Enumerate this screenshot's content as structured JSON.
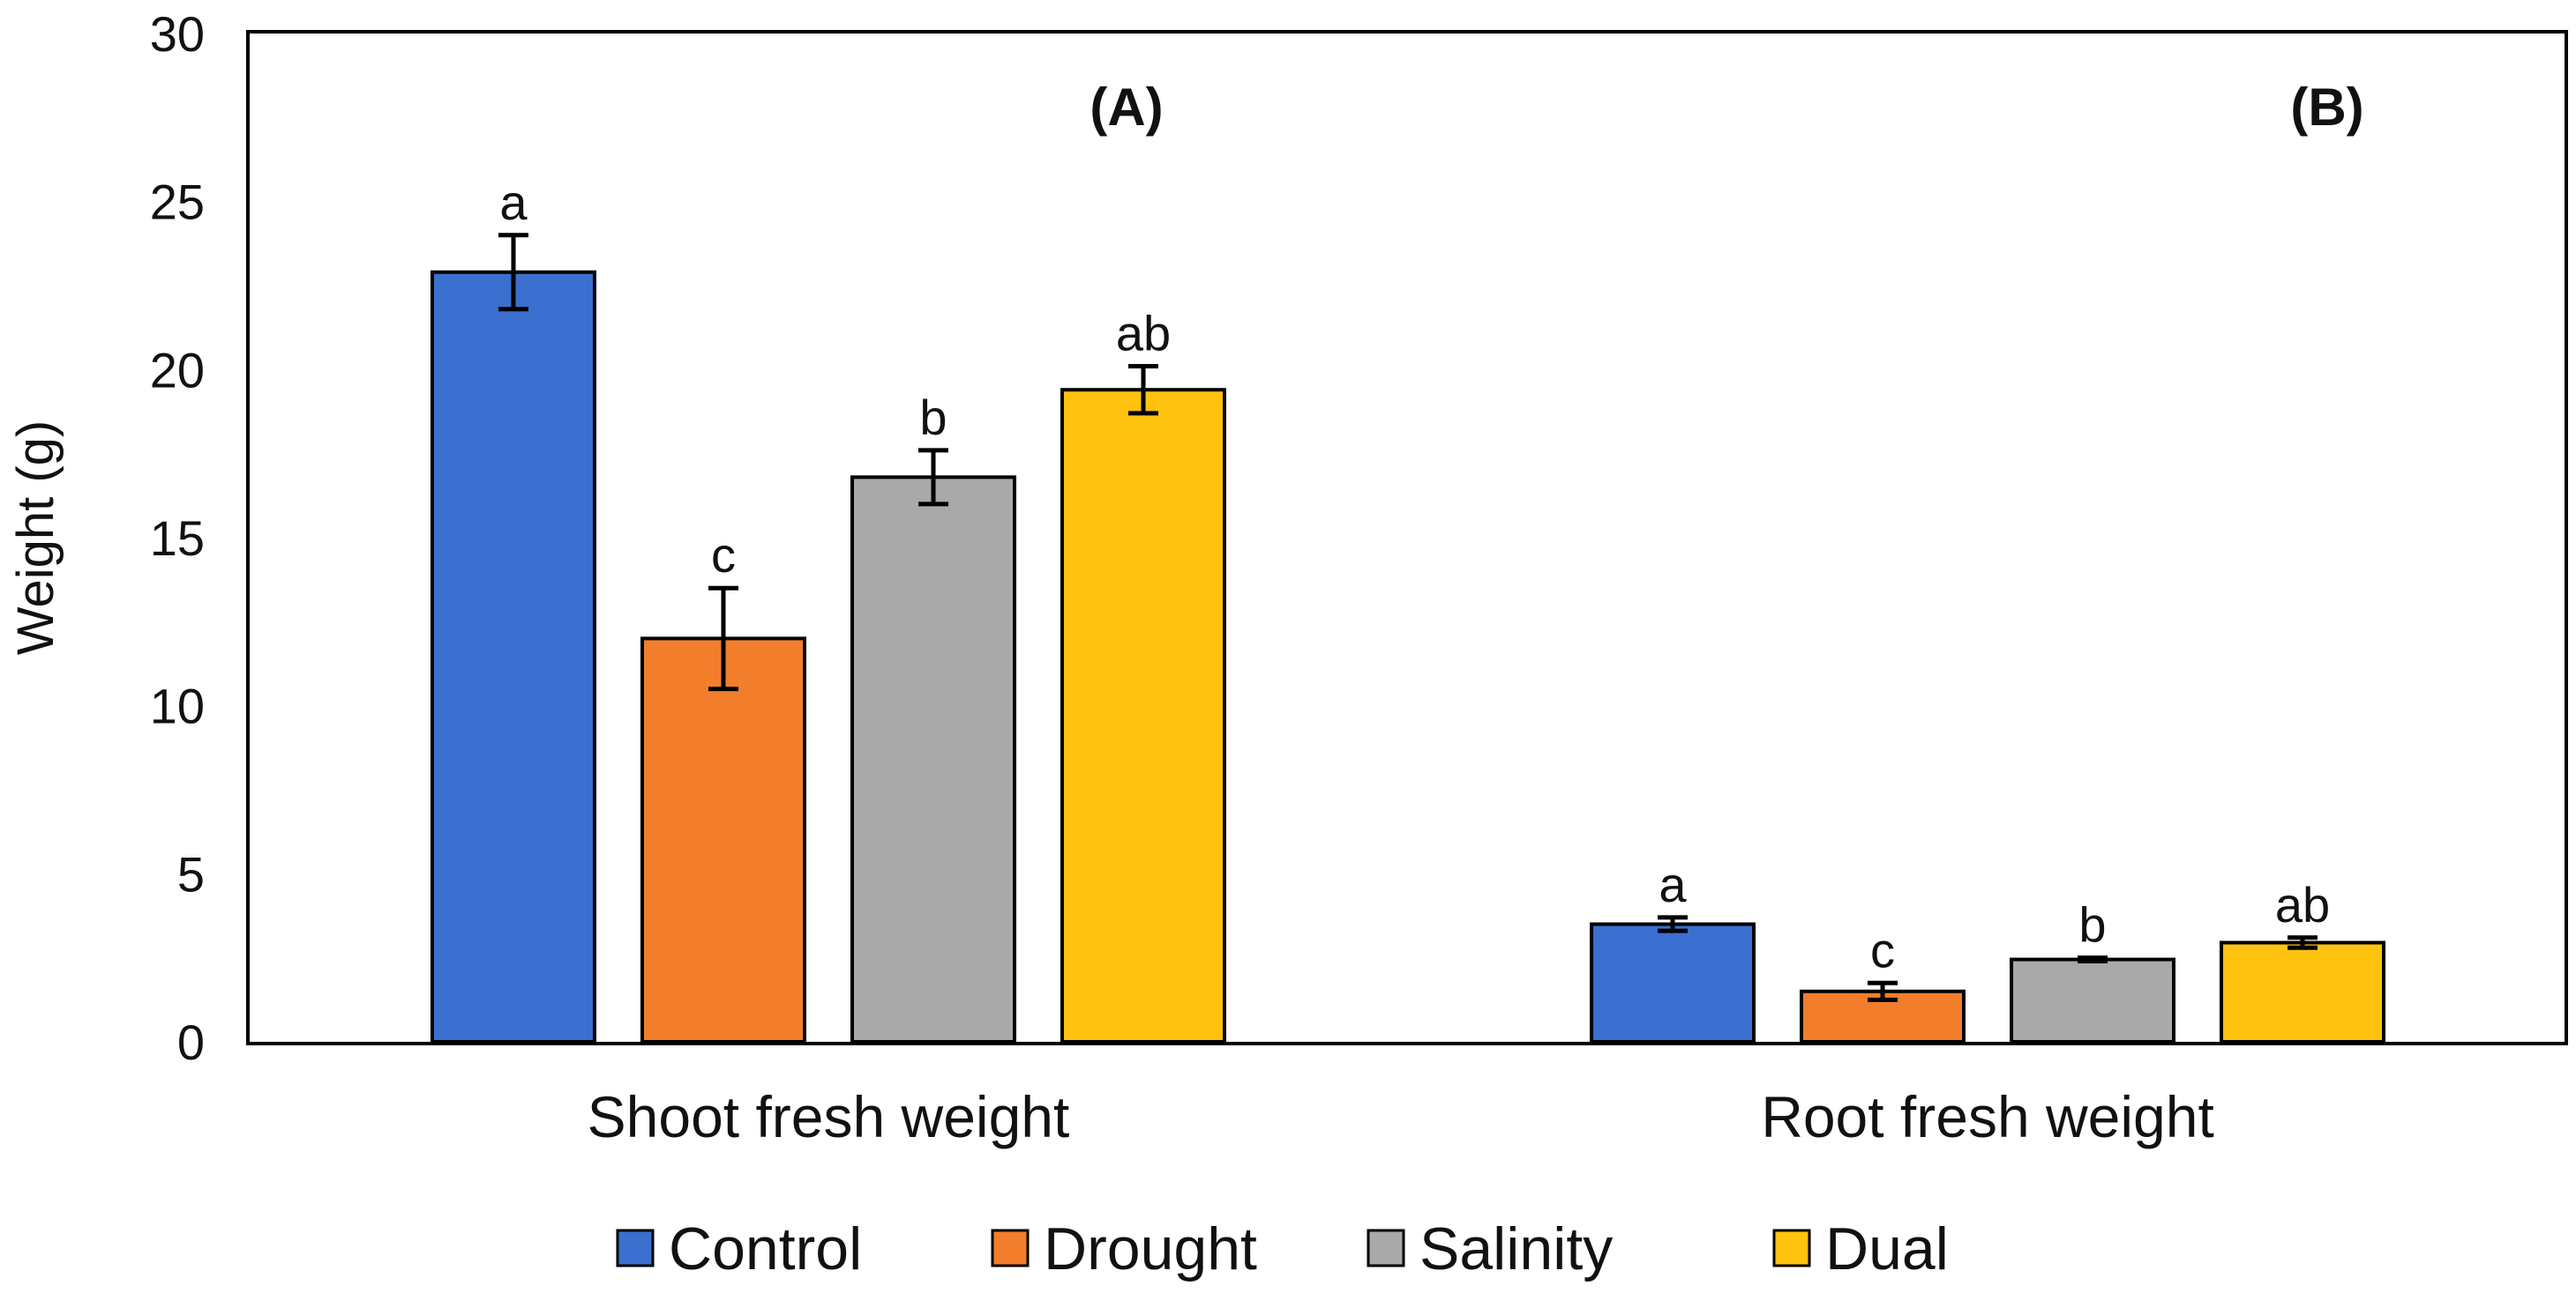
{
  "chart_data": {
    "type": "bar",
    "title": "",
    "xlabel": "",
    "ylabel": "Weight (g)",
    "ylim": [
      0,
      30
    ],
    "yticks": [
      0,
      5,
      10,
      15,
      20,
      25,
      30
    ],
    "grid": false,
    "legend_position": "bottom",
    "categories": [
      "Shoot fresh weight",
      "Root fresh weight"
    ],
    "panel_labels": [
      "(A)",
      "(B)"
    ],
    "series": [
      {
        "name": "Control",
        "color": "#3b6fd0",
        "values": [
          22.9,
          3.5
        ],
        "errors": [
          1.1,
          0.2
        ],
        "significance": [
          "a",
          "a"
        ]
      },
      {
        "name": "Drought",
        "color": "#f27e2c",
        "values": [
          12.0,
          1.5
        ],
        "errors": [
          1.5,
          0.25
        ],
        "significance": [
          "c",
          "c"
        ]
      },
      {
        "name": "Salinity",
        "color": "#a9a9a9",
        "values": [
          16.8,
          2.45
        ],
        "errors": [
          0.8,
          0.05
        ],
        "significance": [
          "b",
          "b"
        ]
      },
      {
        "name": "Dual",
        "color": "#ffc20e",
        "values": [
          19.4,
          2.95
        ],
        "errors": [
          0.7,
          0.15
        ],
        "significance": [
          "ab",
          "ab"
        ]
      }
    ]
  }
}
